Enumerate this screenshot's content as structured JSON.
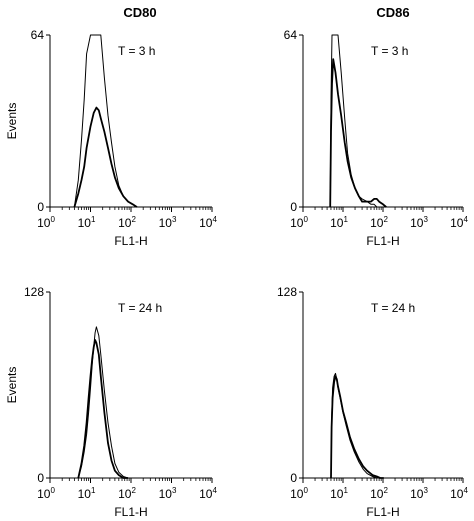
{
  "column_titles": [
    "CD80",
    "CD86"
  ],
  "chart_data": [
    {
      "type": "line",
      "title": "CD80",
      "annotation": "T = 3 h",
      "xlabel": "FL1-H",
      "ylabel": "Events",
      "xscale": "log",
      "xlim": [
        1,
        10000
      ],
      "ylim": [
        0,
        64
      ],
      "x_ticks": [
        "10^0",
        "10^1",
        "10^2",
        "10^3",
        "10^4"
      ],
      "y_ticks": [
        "0",
        "64"
      ],
      "x": [
        4,
        5,
        6,
        7,
        8,
        10,
        12,
        14,
        16,
        18,
        22,
        27,
        33,
        40,
        50,
        65,
        85,
        110,
        140
      ],
      "series": [
        {
          "values": [
            0,
            10,
            25,
            40,
            57,
            64,
            64,
            64,
            64,
            64,
            48,
            34,
            24,
            15,
            8,
            4,
            2,
            1,
            0
          ]
        },
        {
          "values": [
            0,
            5,
            10,
            15,
            22,
            30,
            35,
            37,
            36,
            33,
            28,
            22,
            16,
            11,
            7,
            4,
            2,
            1,
            0
          ]
        }
      ]
    },
    {
      "type": "line",
      "title": "CD86",
      "annotation": "T = 3 h",
      "xlabel": "FL1-H",
      "ylabel": "",
      "xscale": "log",
      "xlim": [
        1,
        10000
      ],
      "ylim": [
        0,
        64
      ],
      "x_ticks": [
        "10^0",
        "10^1",
        "10^2",
        "10^3",
        "10^4"
      ],
      "y_ticks": [
        "0",
        "64"
      ],
      "x": [
        4.8,
        5,
        5.3,
        5.7,
        6.5,
        7.5,
        9,
        11,
        13,
        16,
        20,
        25,
        30,
        40,
        50,
        60,
        70,
        80,
        100,
        120
      ],
      "series": [
        {
          "values": [
            0,
            40,
            64,
            64,
            64,
            64,
            50,
            33,
            20,
            12,
            7,
            4,
            3,
            2,
            1,
            1,
            0,
            0,
            0,
            0
          ]
        },
        {
          "values": [
            0,
            28,
            46,
            55,
            50,
            42,
            34,
            24,
            17,
            11,
            7,
            4,
            2,
            2,
            2,
            3,
            3,
            2,
            1,
            0
          ]
        }
      ]
    },
    {
      "type": "line",
      "title": "",
      "annotation": "T = 24 h",
      "xlabel": "FL1-H",
      "ylabel": "Events",
      "xscale": "log",
      "xlim": [
        1,
        10000
      ],
      "ylim": [
        0,
        128
      ],
      "x_ticks": [
        "10^0",
        "10^1",
        "10^2",
        "10^3",
        "10^4"
      ],
      "y_ticks": [
        "0",
        "128"
      ],
      "x": [
        5,
        6,
        7,
        8,
        9,
        10,
        11,
        12,
        13,
        14,
        16,
        18,
        22,
        27,
        33,
        40,
        50,
        65,
        85
      ],
      "series": [
        {
          "values": [
            0,
            8,
            18,
            30,
            45,
            62,
            78,
            90,
            100,
            104,
            98,
            85,
            60,
            38,
            22,
            10,
            4,
            1,
            0
          ]
        },
        {
          "values": [
            0,
            10,
            22,
            38,
            55,
            70,
            82,
            90,
            95,
            93,
            85,
            70,
            45,
            24,
            12,
            5,
            2,
            0,
            0
          ]
        }
      ]
    },
    {
      "type": "line",
      "title": "",
      "annotation": "T = 24 h",
      "xlabel": "FL1-H",
      "ylabel": "",
      "xscale": "log",
      "xlim": [
        1,
        10000
      ],
      "ylim": [
        0,
        128
      ],
      "x_ticks": [
        "10^0",
        "10^1",
        "10^2",
        "10^3",
        "10^4"
      ],
      "y_ticks": [
        "0",
        "128"
      ],
      "x": [
        5,
        5.2,
        5.5,
        6,
        6.5,
        7,
        7.5,
        8.5,
        10,
        12,
        15,
        19,
        25,
        32,
        40,
        55,
        70,
        85,
        105
      ],
      "series": [
        {
          "values": [
            0,
            40,
            62,
            70,
            72,
            68,
            62,
            55,
            45,
            36,
            26,
            18,
            11,
            6,
            3,
            1,
            0,
            0,
            0
          ]
        },
        {
          "values": [
            0,
            35,
            55,
            66,
            70,
            68,
            63,
            56,
            46,
            38,
            28,
            20,
            13,
            8,
            5,
            2,
            1,
            0,
            0
          ]
        }
      ]
    }
  ]
}
